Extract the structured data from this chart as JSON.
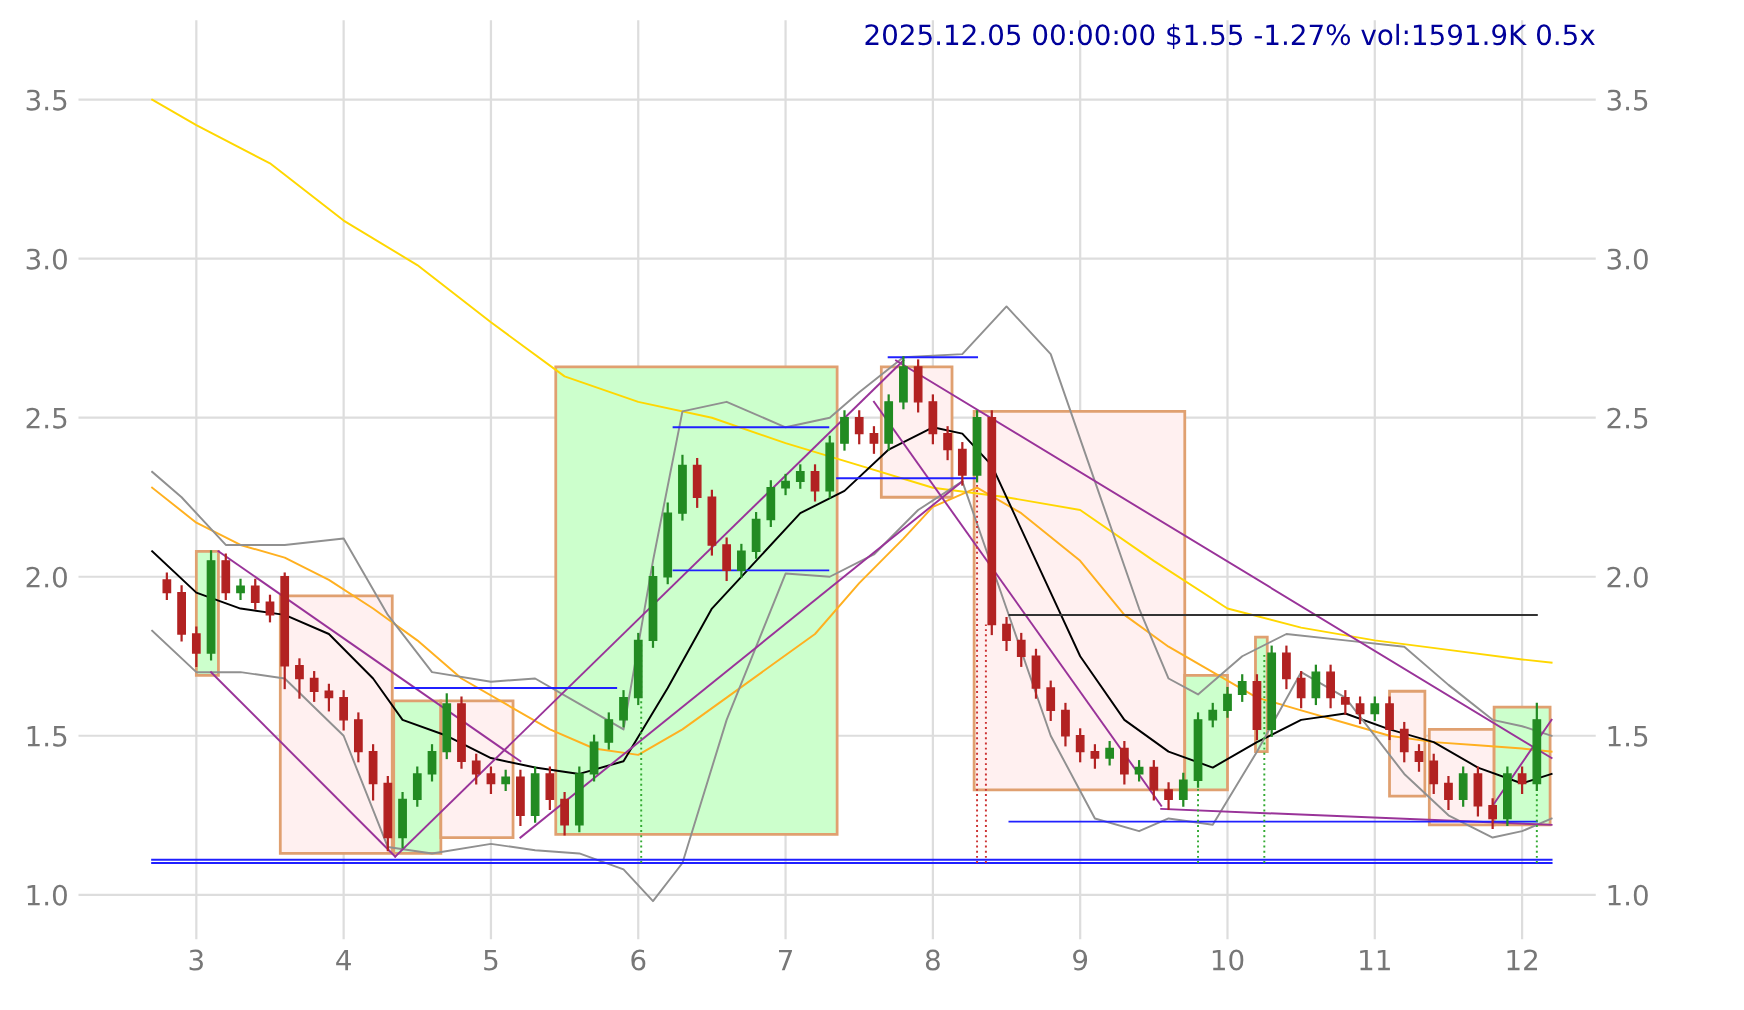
{
  "chart_data": {
    "type": "candlestick",
    "title": "2025.12.05 00:00:00 $1.55 -1.27% vol:1591.9K 0.5x",
    "x": [
      2.8,
      2.9,
      3.0,
      3.1,
      3.2,
      3.3,
      3.4,
      3.5,
      3.6,
      3.7,
      3.8,
      3.9,
      4.0,
      4.1,
      4.2,
      4.3,
      4.4,
      4.5,
      4.6,
      4.7,
      4.8,
      4.9,
      5.0,
      5.1,
      5.2,
      5.3,
      5.4,
      5.5,
      5.6,
      5.7,
      5.8,
      5.9,
      6.0,
      6.1,
      6.2,
      6.3,
      6.4,
      6.5,
      6.6,
      6.7,
      6.8,
      6.9,
      7.0,
      7.1,
      7.2,
      7.3,
      7.4,
      7.5,
      7.6,
      7.7,
      7.8,
      7.9,
      8.0,
      8.1,
      8.2,
      8.3,
      8.4,
      8.5,
      8.6,
      8.7,
      8.8,
      8.9,
      9.0,
      9.1,
      9.2,
      9.3,
      9.4,
      9.5,
      9.6,
      9.7,
      9.8,
      9.9,
      10.0,
      10.1,
      10.2,
      10.3,
      10.4,
      10.5,
      10.6,
      10.7,
      10.8,
      10.9,
      11.0,
      11.1,
      11.2,
      11.3,
      11.4,
      11.5,
      11.6,
      11.7,
      11.8,
      11.9,
      12.0,
      12.1
    ],
    "ohlc": [
      [
        1.99,
        2.01,
        1.93,
        1.95
      ],
      [
        1.95,
        1.97,
        1.8,
        1.82
      ],
      [
        1.82,
        1.84,
        1.72,
        1.76
      ],
      [
        1.76,
        2.08,
        1.74,
        2.05
      ],
      [
        2.05,
        2.07,
        1.93,
        1.95
      ],
      [
        1.95,
        1.99,
        1.93,
        1.97
      ],
      [
        1.97,
        1.99,
        1.9,
        1.92
      ],
      [
        1.92,
        1.94,
        1.86,
        1.88
      ],
      [
        2.0,
        2.01,
        1.65,
        1.72
      ],
      [
        1.72,
        1.74,
        1.62,
        1.68
      ],
      [
        1.68,
        1.7,
        1.61,
        1.64
      ],
      [
        1.64,
        1.66,
        1.58,
        1.62
      ],
      [
        1.62,
        1.64,
        1.52,
        1.55
      ],
      [
        1.55,
        1.57,
        1.42,
        1.45
      ],
      [
        1.45,
        1.47,
        1.3,
        1.35
      ],
      [
        1.35,
        1.37,
        1.14,
        1.18
      ],
      [
        1.18,
        1.32,
        1.15,
        1.3
      ],
      [
        1.3,
        1.4,
        1.28,
        1.38
      ],
      [
        1.38,
        1.47,
        1.36,
        1.45
      ],
      [
        1.45,
        1.63,
        1.43,
        1.6
      ],
      [
        1.6,
        1.62,
        1.4,
        1.42
      ],
      [
        1.42,
        1.44,
        1.35,
        1.38
      ],
      [
        1.38,
        1.4,
        1.32,
        1.35
      ],
      [
        1.35,
        1.39,
        1.33,
        1.37
      ],
      [
        1.37,
        1.39,
        1.22,
        1.25
      ],
      [
        1.25,
        1.4,
        1.23,
        1.38
      ],
      [
        1.38,
        1.4,
        1.27,
        1.3
      ],
      [
        1.3,
        1.32,
        1.19,
        1.22
      ],
      [
        1.22,
        1.4,
        1.2,
        1.38
      ],
      [
        1.38,
        1.5,
        1.36,
        1.48
      ],
      [
        1.48,
        1.57,
        1.46,
        1.55
      ],
      [
        1.55,
        1.64,
        1.53,
        1.62
      ],
      [
        1.62,
        1.82,
        1.6,
        1.8
      ],
      [
        1.8,
        2.03,
        1.78,
        2.0
      ],
      [
        2.0,
        2.23,
        1.98,
        2.2
      ],
      [
        2.2,
        2.38,
        2.18,
        2.35
      ],
      [
        2.35,
        2.37,
        2.22,
        2.25
      ],
      [
        2.25,
        2.27,
        2.07,
        2.1
      ],
      [
        2.1,
        2.12,
        1.99,
        2.02
      ],
      [
        2.02,
        2.1,
        2.0,
        2.08
      ],
      [
        2.08,
        2.2,
        2.06,
        2.18
      ],
      [
        2.18,
        2.3,
        2.16,
        2.28
      ],
      [
        2.28,
        2.32,
        2.26,
        2.3
      ],
      [
        2.3,
        2.35,
        2.28,
        2.33
      ],
      [
        2.33,
        2.35,
        2.24,
        2.27
      ],
      [
        2.27,
        2.44,
        2.25,
        2.42
      ],
      [
        2.42,
        2.52,
        2.4,
        2.5
      ],
      [
        2.5,
        2.52,
        2.42,
        2.45
      ],
      [
        2.45,
        2.47,
        2.39,
        2.42
      ],
      [
        2.42,
        2.57,
        2.4,
        2.55
      ],
      [
        2.55,
        2.69,
        2.53,
        2.66
      ],
      [
        2.66,
        2.68,
        2.52,
        2.55
      ],
      [
        2.55,
        2.57,
        2.42,
        2.45
      ],
      [
        2.45,
        2.47,
        2.37,
        2.4
      ],
      [
        2.4,
        2.42,
        2.29,
        2.32
      ],
      [
        2.32,
        2.52,
        2.3,
        2.5
      ],
      [
        2.5,
        2.52,
        1.82,
        1.85
      ],
      [
        1.85,
        1.87,
        1.77,
        1.8
      ],
      [
        1.8,
        1.82,
        1.72,
        1.75
      ],
      [
        1.75,
        1.77,
        1.62,
        1.65
      ],
      [
        1.65,
        1.67,
        1.55,
        1.58
      ],
      [
        1.58,
        1.6,
        1.47,
        1.5
      ],
      [
        1.5,
        1.52,
        1.42,
        1.45
      ],
      [
        1.45,
        1.47,
        1.4,
        1.43
      ],
      [
        1.43,
        1.48,
        1.41,
        1.46
      ],
      [
        1.46,
        1.48,
        1.35,
        1.38
      ],
      [
        1.38,
        1.42,
        1.36,
        1.4
      ],
      [
        1.4,
        1.42,
        1.3,
        1.33
      ],
      [
        1.33,
        1.35,
        1.27,
        1.3
      ],
      [
        1.3,
        1.38,
        1.28,
        1.36
      ],
      [
        1.36,
        1.57,
        1.34,
        1.55
      ],
      [
        1.55,
        1.6,
        1.53,
        1.58
      ],
      [
        1.58,
        1.65,
        1.56,
        1.63
      ],
      [
        1.63,
        1.69,
        1.61,
        1.67
      ],
      [
        1.67,
        1.69,
        1.49,
        1.52
      ],
      [
        1.52,
        1.78,
        1.5,
        1.76
      ],
      [
        1.76,
        1.78,
        1.65,
        1.68
      ],
      [
        1.68,
        1.7,
        1.59,
        1.62
      ],
      [
        1.62,
        1.72,
        1.6,
        1.7
      ],
      [
        1.7,
        1.72,
        1.59,
        1.62
      ],
      [
        1.62,
        1.64,
        1.57,
        1.6
      ],
      [
        1.6,
        1.62,
        1.54,
        1.57
      ],
      [
        1.57,
        1.62,
        1.55,
        1.6
      ],
      [
        1.6,
        1.62,
        1.49,
        1.52
      ],
      [
        1.52,
        1.54,
        1.42,
        1.45
      ],
      [
        1.45,
        1.47,
        1.39,
        1.42
      ],
      [
        1.42,
        1.44,
        1.32,
        1.35
      ],
      [
        1.35,
        1.37,
        1.27,
        1.3
      ],
      [
        1.3,
        1.4,
        1.28,
        1.38
      ],
      [
        1.38,
        1.4,
        1.25,
        1.28
      ],
      [
        1.28,
        1.3,
        1.21,
        1.24
      ],
      [
        1.24,
        1.4,
        1.22,
        1.38
      ],
      [
        1.38,
        1.4,
        1.32,
        1.35
      ],
      [
        1.35,
        1.6,
        1.33,
        1.55
      ]
    ],
    "series": [
      {
        "type": "area",
        "color": "#ccffcc",
        "x": [
          3.0,
          3.15,
          3.15,
          3.0,
          3.0
        ],
        "values": [
          1.69,
          1.69,
          2.08,
          2.08,
          1.69
        ]
      },
      {
        "type": "area",
        "color": "#fff0f0",
        "x": [
          3.57,
          4.33,
          4.33,
          3.57,
          3.57
        ],
        "values": [
          1.13,
          1.13,
          1.94,
          1.94,
          1.13
        ]
      },
      {
        "type": "area",
        "color": "#ccffcc",
        "x": [
          4.34,
          4.66,
          4.66,
          4.34,
          4.34
        ],
        "values": [
          1.13,
          1.13,
          1.61,
          1.61,
          1.13
        ]
      },
      {
        "type": "area",
        "color": "#fff0f0",
        "x": [
          4.66,
          5.15,
          5.15,
          4.66,
          4.66
        ],
        "values": [
          1.18,
          1.18,
          1.61,
          1.61,
          1.18
        ]
      },
      {
        "type": "area",
        "color": "#ccffcc",
        "x": [
          5.44,
          7.35,
          7.35,
          5.44,
          5.44
        ],
        "values": [
          1.19,
          1.19,
          2.66,
          2.66,
          1.19
        ]
      },
      {
        "type": "area",
        "color": "#fff0f0",
        "x": [
          7.65,
          8.13,
          8.13,
          7.65,
          7.65
        ],
        "values": [
          2.25,
          2.25,
          2.66,
          2.66,
          2.25
        ]
      },
      {
        "type": "area",
        "color": "#fff0f0",
        "x": [
          8.28,
          9.71,
          9.71,
          8.28,
          8.28
        ],
        "values": [
          1.33,
          1.33,
          2.52,
          2.52,
          1.33
        ]
      },
      {
        "type": "area",
        "color": "#ccffcc",
        "x": [
          9.71,
          10.0,
          10.0,
          9.71,
          9.71
        ],
        "values": [
          1.33,
          1.33,
          1.69,
          1.69,
          1.33
        ]
      },
      {
        "type": "area",
        "color": "#ccffcc",
        "x": [
          10.19,
          10.27,
          10.27,
          10.19,
          10.19
        ],
        "values": [
          1.45,
          1.45,
          1.81,
          1.81,
          1.45
        ]
      },
      {
        "type": "area",
        "color": "#fff0f0",
        "x": [
          11.1,
          11.34,
          11.34,
          11.1,
          11.1
        ],
        "values": [
          1.31,
          1.31,
          1.64,
          1.64,
          1.31
        ]
      },
      {
        "type": "area",
        "color": "#fff0f0",
        "x": [
          11.37,
          11.81,
          11.81,
          11.37,
          11.37
        ],
        "values": [
          1.22,
          1.22,
          1.52,
          1.52,
          1.22
        ]
      },
      {
        "type": "area",
        "color": "#ccffcc",
        "x": [
          11.81,
          12.19,
          12.19,
          11.81,
          11.81
        ],
        "values": [
          1.22,
          1.22,
          1.59,
          1.59,
          1.22
        ]
      },
      {
        "type": "line",
        "color": "#ffd700",
        "x": [
          2.7,
          3.0,
          3.5,
          4.0,
          4.5,
          5.0,
          5.5,
          6.0,
          6.5,
          7.0,
          7.5,
          8.0,
          8.5,
          9.0,
          9.5,
          10.0,
          10.5,
          11.0,
          11.5,
          12.0,
          12.2
        ],
        "values": [
          3.5,
          3.42,
          3.3,
          3.12,
          2.98,
          2.8,
          2.63,
          2.55,
          2.5,
          2.42,
          2.35,
          2.28,
          2.25,
          2.21,
          2.05,
          1.9,
          1.84,
          1.8,
          1.77,
          1.74,
          1.73
        ]
      },
      {
        "type": "line",
        "color": "#ffb020",
        "x": [
          2.7,
          3.0,
          3.3,
          3.6,
          3.9,
          4.2,
          4.5,
          4.8,
          5.1,
          5.4,
          5.7,
          6.0,
          6.3,
          6.6,
          6.9,
          7.2,
          7.5,
          7.8,
          8.0,
          8.3,
          8.6,
          9.0,
          9.3,
          9.6,
          9.9,
          10.2,
          10.5,
          10.8,
          11.1,
          11.4,
          11.7,
          12.0,
          12.2
        ],
        "values": [
          2.28,
          2.17,
          2.1,
          2.06,
          1.99,
          1.9,
          1.8,
          1.68,
          1.6,
          1.52,
          1.46,
          1.44,
          1.52,
          1.62,
          1.72,
          1.82,
          1.98,
          2.12,
          2.22,
          2.28,
          2.2,
          2.05,
          1.88,
          1.78,
          1.7,
          1.62,
          1.58,
          1.54,
          1.5,
          1.48,
          1.47,
          1.46,
          1.45
        ]
      },
      {
        "type": "line",
        "color": "#000000",
        "x": [
          2.7,
          3.0,
          3.3,
          3.6,
          3.9,
          4.2,
          4.4,
          4.7,
          5.0,
          5.3,
          5.6,
          5.9,
          6.2,
          6.5,
          6.8,
          7.1,
          7.4,
          7.7,
          8.0,
          8.2,
          8.4,
          8.7,
          9.0,
          9.3,
          9.6,
          9.9,
          10.2,
          10.5,
          10.8,
          11.1,
          11.4,
          11.7,
          12.0,
          12.2
        ],
        "values": [
          2.08,
          1.95,
          1.9,
          1.88,
          1.82,
          1.68,
          1.55,
          1.5,
          1.43,
          1.4,
          1.38,
          1.42,
          1.65,
          1.9,
          2.05,
          2.2,
          2.27,
          2.4,
          2.47,
          2.45,
          2.35,
          2.05,
          1.75,
          1.55,
          1.45,
          1.4,
          1.48,
          1.55,
          1.57,
          1.52,
          1.48,
          1.4,
          1.35,
          1.38
        ]
      },
      {
        "type": "line",
        "color": "#909090",
        "x": [
          2.7,
          2.9,
          3.2,
          3.6,
          4.0,
          4.3,
          4.6,
          5.0,
          5.3,
          5.6,
          5.9,
          6.1,
          6.3,
          6.6,
          7.0,
          7.3,
          7.5,
          7.8,
          8.2,
          8.5,
          8.8,
          9.1,
          9.4,
          9.6,
          9.8,
          10.1,
          10.4,
          10.8,
          11.2,
          11.5,
          11.8,
          12.0,
          12.2
        ],
        "values": [
          2.33,
          2.25,
          2.1,
          2.1,
          2.12,
          1.88,
          1.7,
          1.67,
          1.68,
          1.6,
          1.52,
          2.05,
          2.52,
          2.55,
          2.47,
          2.5,
          2.58,
          2.69,
          2.7,
          2.85,
          2.7,
          2.3,
          1.9,
          1.68,
          1.63,
          1.75,
          1.82,
          1.8,
          1.78,
          1.66,
          1.55,
          1.53,
          1.5
        ]
      },
      {
        "type": "line",
        "color": "#909090",
        "x": [
          2.7,
          3.0,
          3.3,
          3.6,
          4.0,
          4.3,
          4.6,
          5.0,
          5.3,
          5.6,
          5.9,
          6.1,
          6.3,
          6.6,
          7.0,
          7.3,
          7.6,
          7.9,
          8.2,
          8.5,
          8.8,
          9.1,
          9.4,
          9.6,
          9.9,
          10.2,
          10.5,
          10.8,
          11.2,
          11.5,
          11.8,
          12.0,
          12.2
        ],
        "values": [
          1.83,
          1.7,
          1.7,
          1.68,
          1.5,
          1.15,
          1.13,
          1.16,
          1.14,
          1.13,
          1.08,
          0.98,
          1.1,
          1.55,
          2.01,
          2.0,
          2.07,
          2.21,
          2.3,
          1.9,
          1.5,
          1.24,
          1.2,
          1.24,
          1.22,
          1.45,
          1.7,
          1.62,
          1.38,
          1.25,
          1.18,
          1.2,
          1.24
        ]
      },
      {
        "type": "line",
        "color": "#993399",
        "x": [
          3.1,
          4.35
        ],
        "values": [
          1.7,
          1.12
        ]
      },
      {
        "type": "line",
        "color": "#993399",
        "x": [
          3.15,
          5.2
        ],
        "values": [
          2.08,
          1.42
        ]
      },
      {
        "type": "line",
        "color": "#993399",
        "x": [
          4.35,
          7.8
        ],
        "values": [
          1.12,
          2.68
        ]
      },
      {
        "type": "line",
        "color": "#993399",
        "x": [
          5.2,
          8.2
        ],
        "values": [
          1.18,
          2.3
        ]
      },
      {
        "type": "line",
        "color": "#993399",
        "x": [
          7.75,
          12.2
        ],
        "values": [
          2.68,
          1.43
        ]
      },
      {
        "type": "line",
        "color": "#993399",
        "x": [
          7.6,
          9.55
        ],
        "values": [
          2.55,
          1.28
        ]
      },
      {
        "type": "line",
        "color": "#993399",
        "x": [
          9.55,
          12.2
        ],
        "values": [
          1.27,
          1.22
        ]
      },
      {
        "type": "line",
        "color": "#993399",
        "x": [
          11.8,
          12.2
        ],
        "values": [
          1.28,
          1.55
        ]
      },
      {
        "type": "line",
        "color": "#2020ff",
        "x": [
          4.35,
          5.85
        ],
        "values": [
          1.65,
          1.65
        ]
      },
      {
        "type": "line",
        "color": "#2020ff",
        "x": [
          6.24,
          7.29
        ],
        "values": [
          2.47,
          2.47
        ]
      },
      {
        "type": "line",
        "color": "#2020ff",
        "x": [
          6.24,
          7.29
        ],
        "values": [
          2.02,
          2.02
        ]
      },
      {
        "type": "line",
        "color": "#2020ff",
        "x": [
          7.7,
          8.3
        ],
        "values": [
          2.69,
          2.69
        ]
      },
      {
        "type": "line",
        "color": "#2020ff",
        "x": [
          7.35,
          8.3
        ],
        "values": [
          2.31,
          2.31
        ]
      },
      {
        "type": "line",
        "color": "#333333",
        "x": [
          8.52,
          12.1
        ],
        "values": [
          1.88,
          1.88
        ]
      },
      {
        "type": "line",
        "color": "#2020ff",
        "x": [
          8.52,
          12.1
        ],
        "values": [
          1.23,
          1.23
        ]
      },
      {
        "type": "line",
        "color": "#2020ff",
        "x": [
          2.7,
          12.2
        ],
        "values": [
          1.11,
          1.11
        ]
      },
      {
        "type": "line",
        "color": "#2020ff",
        "x": [
          2.7,
          12.2
        ],
        "values": [
          1.1,
          1.1
        ]
      },
      {
        "type": "line",
        "color": "#33aa33",
        "line_style": "dotted",
        "x": [
          6.02,
          6.02
        ],
        "values": [
          1.1,
          1.8
        ]
      },
      {
        "type": "line",
        "color": "#cc3333",
        "line_style": "dotted",
        "x": [
          8.3,
          8.3
        ],
        "values": [
          1.1,
          2.5
        ]
      },
      {
        "type": "line",
        "color": "#cc3333",
        "line_style": "dotted",
        "x": [
          8.36,
          8.36
        ],
        "values": [
          1.1,
          1.85
        ]
      },
      {
        "type": "line",
        "color": "#33aa33",
        "line_style": "dotted",
        "x": [
          9.8,
          9.8
        ],
        "values": [
          1.1,
          1.34
        ]
      },
      {
        "type": "line",
        "color": "#33aa33",
        "line_style": "dotted",
        "x": [
          10.25,
          10.25
        ],
        "values": [
          1.1,
          1.76
        ]
      },
      {
        "type": "line",
        "color": "#33aa33",
        "line_style": "dotted",
        "x": [
          12.1,
          12.1
        ],
        "values": [
          1.1,
          1.33
        ]
      }
    ],
    "xlim": [
      2.2,
      12.5
    ],
    "xticks": [
      3,
      4,
      5,
      6,
      7,
      8,
      9,
      10,
      11,
      12
    ],
    "ylim": [
      0.86,
      3.75
    ],
    "yticks": [
      {
        "value": 1,
        "label": "1.0"
      },
      {
        "value": 1.5,
        "label": "1.5"
      },
      {
        "value": 2,
        "label": "2.0"
      },
      {
        "value": 2.5,
        "label": "2.5"
      },
      {
        "value": 3,
        "label": "3.0"
      },
      {
        "value": 3.5,
        "label": "3.5"
      }
    ],
    "y2lim": [
      0.86,
      3.75
    ],
    "y2ticks": [
      {
        "value": 1,
        "label": "1.0"
      },
      {
        "value": 1.5,
        "label": "1.5"
      },
      {
        "value": 2,
        "label": "2.0"
      },
      {
        "value": 2.5,
        "label": "2.5"
      },
      {
        "value": 3,
        "label": "3.0"
      },
      {
        "value": 3.5,
        "label": "3.5"
      }
    ],
    "grid": true
  }
}
